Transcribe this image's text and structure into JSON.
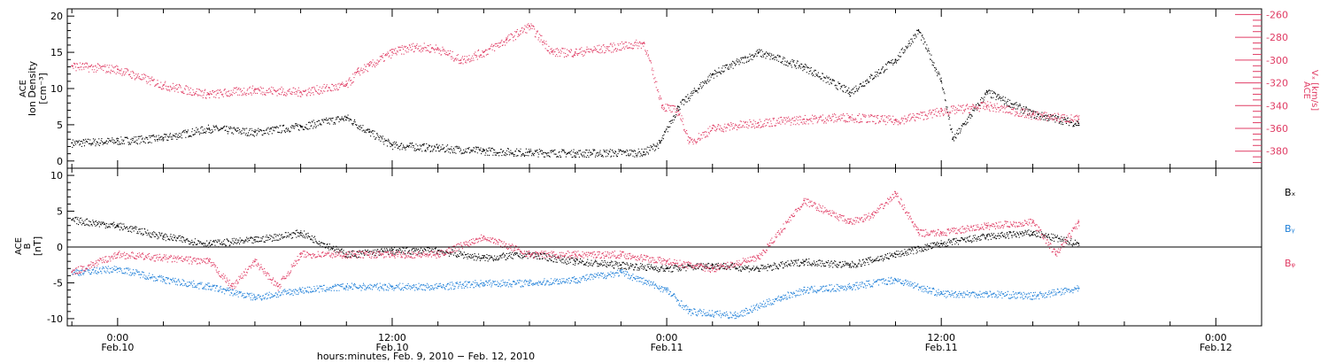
{
  "chart_data": [
    {
      "type": "scatter",
      "panel": "top",
      "left_axis": {
        "lines": [
          "ACE",
          "Ion Density",
          "[cm⁻³]"
        ],
        "ticks": [
          0,
          5,
          10,
          15,
          20
        ],
        "ylim": [
          -1,
          21
        ],
        "color": "#000000"
      },
      "right_axis": {
        "lines": [
          "ACE",
          "Vₓ [km/s]"
        ],
        "ticks": [
          -260,
          -280,
          -300,
          -320,
          -340,
          -360,
          -380
        ],
        "ylim": [
          -395,
          -255
        ],
        "color": "#e03c64"
      },
      "series": [
        {
          "axis": "left",
          "color": "#000000",
          "x": [
            -2,
            0,
            2,
            4,
            6,
            8,
            10,
            11,
            12,
            14,
            16,
            18,
            20,
            23,
            23.7,
            24.5,
            26,
            28,
            30,
            32,
            34,
            35,
            36,
            36.5,
            38,
            40,
            42
          ],
          "values": [
            2.5,
            2.8,
            3.2,
            4.5,
            4.0,
            4.8,
            6.0,
            4.0,
            2.2,
            1.8,
            1.4,
            1.2,
            1.1,
            1.2,
            2.5,
            7.5,
            12,
            15,
            13,
            9.5,
            14,
            18,
            11,
            3,
            9.5,
            6.5,
            5.2
          ]
        },
        {
          "axis": "right",
          "color": "#e03c64",
          "x": [
            -2,
            0,
            2,
            4,
            6,
            8,
            10,
            10.5,
            11,
            12,
            13,
            14,
            15,
            16,
            17,
            18,
            19,
            20,
            23,
            23.8,
            24.5,
            25,
            26,
            28,
            30,
            32,
            34,
            36,
            38,
            40,
            42
          ],
          "values": [
            -305,
            -308,
            -322,
            -330,
            -326,
            -328,
            -322,
            -310,
            -305,
            -293,
            -288,
            -290,
            -300,
            -293,
            -282,
            -270,
            -293,
            -293,
            -285,
            -340,
            -345,
            -372,
            -360,
            -355,
            -352,
            -350,
            -353,
            -345,
            -340,
            -348,
            -352
          ]
        }
      ]
    },
    {
      "type": "scatter",
      "panel": "bottom",
      "axis": {
        "lines": [
          "ACE",
          "B",
          "[nT]"
        ],
        "ticks": [
          -10,
          -5,
          0,
          5,
          10
        ],
        "ylim": [
          -11,
          11
        ]
      },
      "zero_line": true,
      "series": [
        {
          "name": "Bₓ",
          "color": "#000000",
          "x": [
            -2,
            0,
            2,
            4,
            6,
            8,
            10,
            12,
            14,
            16,
            18,
            20,
            22,
            24,
            26,
            28,
            30,
            32,
            34,
            36,
            38,
            40,
            42
          ],
          "values": [
            3.8,
            3.0,
            1.5,
            0.5,
            1.0,
            2.0,
            -1.0,
            -0.5,
            -0.5,
            -1.5,
            -1.0,
            -2.0,
            -2.5,
            -3.0,
            -2.5,
            -3.0,
            -2.0,
            -2.5,
            -1.0,
            0.5,
            1.5,
            2.0,
            0.5
          ]
        },
        {
          "name": "Bᵧ",
          "color": "#1e7fd8",
          "x": [
            -2,
            0,
            2,
            4,
            6,
            8,
            10,
            12,
            14,
            16,
            18,
            20,
            22,
            24,
            25,
            27,
            29,
            30,
            32,
            34,
            36,
            38,
            40,
            42
          ],
          "values": [
            -3.5,
            -3.0,
            -4.5,
            -5.5,
            -7.0,
            -6.0,
            -5.5,
            -5.5,
            -5.5,
            -5.0,
            -5.0,
            -4.5,
            -3.5,
            -6.0,
            -9.0,
            -9.5,
            -7.0,
            -6.0,
            -5.5,
            -4.5,
            -6.5,
            -6.5,
            -6.8,
            -5.8
          ]
        },
        {
          "name": "Bᵩ",
          "color": "#e03c64",
          "x": [
            -2,
            0,
            2,
            4,
            5,
            6,
            7,
            8,
            10,
            12,
            14,
            16,
            18,
            20,
            22,
            24,
            26,
            28,
            30,
            32,
            33,
            34,
            35,
            36,
            38,
            40,
            41,
            42
          ],
          "values": [
            -3.5,
            -1.0,
            -1.5,
            -2.0,
            -5.5,
            -2.0,
            -5.5,
            -1.0,
            -1.0,
            -1.0,
            -1.0,
            1.5,
            -1.0,
            -1.0,
            -1.0,
            -2.0,
            -3.0,
            -1.5,
            6.5,
            3.5,
            4.5,
            7.5,
            2.0,
            2.0,
            3.0,
            3.5,
            -1.0,
            3.5
          ]
        }
      ]
    }
  ],
  "x_axis": {
    "range": [
      -2.2,
      50
    ],
    "ticks": [
      {
        "x": 0,
        "line1": "0:00",
        "line2": "Feb.10"
      },
      {
        "x": 12,
        "line1": "12:00",
        "line2": "Feb.10"
      },
      {
        "x": 24,
        "line1": "0:00",
        "line2": "Feb.11"
      },
      {
        "x": 36,
        "line1": "12:00",
        "line2": "Feb.11"
      },
      {
        "x": 48,
        "line1": "0:00",
        "line2": "Feb.12"
      }
    ],
    "label": "hours:minutes, Feb.  9, 2010 − Feb. 12, 2010"
  }
}
